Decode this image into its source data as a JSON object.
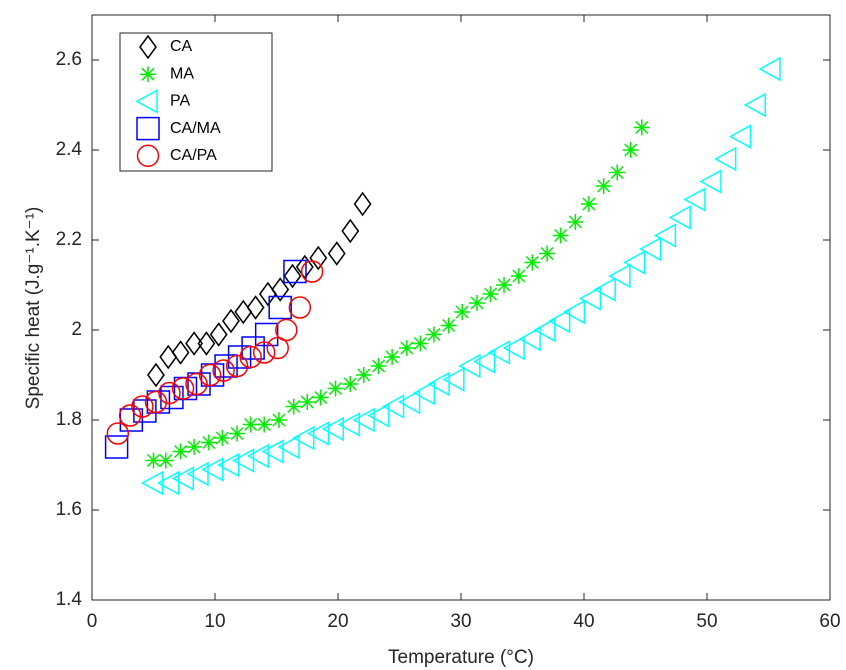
{
  "chart_data": {
    "type": "scatter",
    "xlabel": "Temperature (°C)",
    "ylabel": "Specific heat (J.g⁻¹.K⁻¹)",
    "xlim": [
      0,
      60
    ],
    "xticks": [
      0,
      10,
      20,
      30,
      40,
      50,
      60
    ],
    "ylim": [
      1.4,
      2.7
    ],
    "yticks": [
      1.4,
      1.6,
      1.8,
      2,
      2.2,
      2.4,
      2.6
    ],
    "legend": "upper-left",
    "series": [
      {
        "name": "CA",
        "color": "#000000",
        "marker": "diamond",
        "x": [
          5.2,
          6.2,
          7.2,
          8.3,
          9.3,
          10.3,
          11.3,
          12.3,
          13.3,
          14.3,
          15.3,
          16.3,
          17.3,
          18.4,
          19.9,
          21.0,
          22.0
        ],
        "values": [
          1.9,
          1.94,
          1.95,
          1.97,
          1.97,
          1.99,
          2.02,
          2.04,
          2.05,
          2.08,
          2.09,
          2.12,
          2.14,
          2.16,
          2.17,
          2.22,
          2.28
        ]
      },
      {
        "name": "MA",
        "color": "#00ee00",
        "marker": "asterisk",
        "x": [
          5.0,
          6.0,
          7.2,
          8.3,
          9.5,
          10.6,
          11.8,
          12.9,
          14.0,
          15.2,
          16.4,
          17.5,
          18.6,
          19.8,
          21.0,
          22.1,
          23.3,
          24.4,
          25.6,
          26.7,
          27.8,
          29.0,
          30.1,
          31.3,
          32.4,
          33.5,
          34.7,
          35.8,
          37.0,
          38.1,
          39.3,
          40.4,
          41.6,
          42.7,
          43.8,
          44.7
        ],
        "values": [
          1.71,
          1.71,
          1.73,
          1.74,
          1.75,
          1.76,
          1.77,
          1.79,
          1.79,
          1.8,
          1.83,
          1.84,
          1.85,
          1.87,
          1.88,
          1.9,
          1.92,
          1.94,
          1.96,
          1.97,
          1.99,
          2.01,
          2.04,
          2.06,
          2.08,
          2.1,
          2.12,
          2.15,
          2.17,
          2.21,
          2.24,
          2.28,
          2.32,
          2.35,
          2.4,
          2.45
        ]
      },
      {
        "name": "PA",
        "color": "#00ffff",
        "marker": "triangle-left",
        "x": [
          5.0,
          6.3,
          7.5,
          8.7,
          9.9,
          11.2,
          12.4,
          13.6,
          14.8,
          16.1,
          17.3,
          18.5,
          19.7,
          21.0,
          22.2,
          23.4,
          24.6,
          25.9,
          27.1,
          28.3,
          29.5,
          30.8,
          32.0,
          33.2,
          34.4,
          35.7,
          36.9,
          38.1,
          39.3,
          40.6,
          41.8,
          43.0,
          44.2,
          45.5,
          46.7,
          47.9,
          49.1,
          50.4,
          51.6,
          52.8,
          54.0,
          55.2
        ],
        "values": [
          1.66,
          1.66,
          1.67,
          1.68,
          1.69,
          1.7,
          1.71,
          1.72,
          1.73,
          1.74,
          1.76,
          1.77,
          1.78,
          1.79,
          1.8,
          1.81,
          1.83,
          1.84,
          1.86,
          1.88,
          1.89,
          1.92,
          1.93,
          1.95,
          1.96,
          1.98,
          2.0,
          2.02,
          2.04,
          2.07,
          2.09,
          2.12,
          2.15,
          2.18,
          2.21,
          2.25,
          2.29,
          2.33,
          2.38,
          2.43,
          2.5,
          2.58
        ]
      },
      {
        "name": "CA/MA",
        "color": "#0000ff",
        "marker": "square",
        "x": [
          2.0,
          3.2,
          4.3,
          5.4,
          6.5,
          7.6,
          8.7,
          9.8,
          10.9,
          12.0,
          13.1,
          14.2,
          15.3,
          16.5
        ],
        "values": [
          1.74,
          1.8,
          1.82,
          1.84,
          1.85,
          1.87,
          1.88,
          1.9,
          1.92,
          1.94,
          1.96,
          1.99,
          2.05,
          2.13
        ]
      },
      {
        "name": "CA/PA",
        "color": "#ff0000",
        "marker": "circle",
        "x": [
          2.1,
          3.1,
          4.1,
          5.2,
          6.3,
          7.4,
          8.5,
          9.6,
          10.7,
          11.8,
          12.9,
          14.0,
          15.1,
          15.8,
          16.9,
          17.9
        ],
        "values": [
          1.77,
          1.81,
          1.83,
          1.84,
          1.86,
          1.87,
          1.88,
          1.9,
          1.91,
          1.92,
          1.94,
          1.95,
          1.96,
          2.0,
          2.05,
          2.13
        ]
      }
    ]
  }
}
